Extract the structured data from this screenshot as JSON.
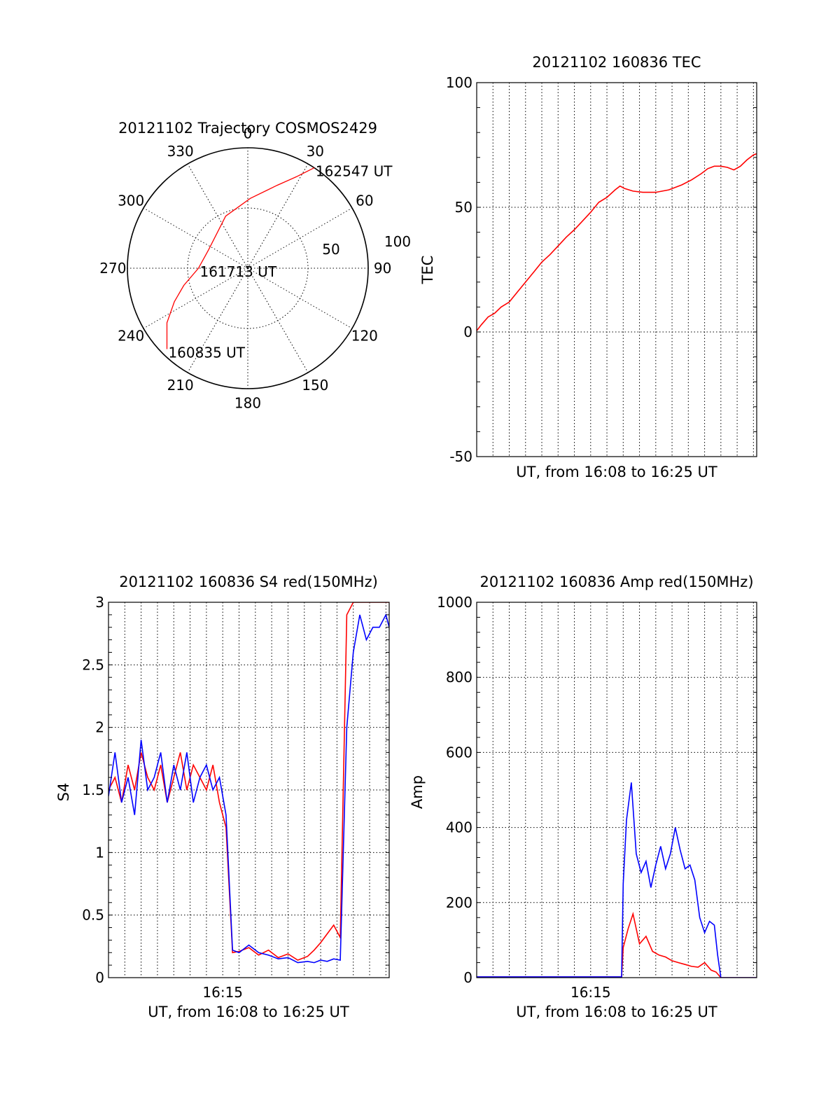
{
  "chart_data": [
    {
      "id": "polar",
      "type": "polar-trajectory",
      "title": "20121102 Trajectory COSMOS2429",
      "angle_labels": [
        "0",
        "30",
        "60",
        "90",
        "120",
        "150",
        "180",
        "210",
        "240",
        "270",
        "300",
        "330"
      ],
      "radius_labels": [
        "50",
        "100"
      ],
      "trajectory": [
        {
          "azimuth": 225.0,
          "zenith": 95,
          "label": "160835 UT"
        },
        {
          "azimuth": 236.0,
          "zenith": 81
        },
        {
          "azimuth": 245.5,
          "zenith": 67
        },
        {
          "azimuth": 255.0,
          "zenith": 55
        },
        {
          "azimuth": 270.0,
          "zenith": 41,
          "label": "161713 UT"
        },
        {
          "azimuth": 295.0,
          "zenith": 36
        },
        {
          "azimuth": 337.0,
          "zenith": 47
        },
        {
          "azimuth": 2.0,
          "zenith": 58
        },
        {
          "azimuth": 19.5,
          "zenith": 73
        },
        {
          "azimuth": 28.0,
          "zenith": 86
        },
        {
          "azimuth": 33.5,
          "zenith": 100,
          "label": "162547 UT"
        }
      ],
      "colors": {
        "trajectory": "#ff0000"
      }
    },
    {
      "id": "tec",
      "type": "line",
      "title": "20121102 160836 TEC",
      "xlabel": "UT, from 16:08 to 16:25 UT",
      "ylabel": "TEC",
      "ylim": [
        -50,
        100
      ],
      "yticks": [
        "100",
        "50",
        "0",
        "-50"
      ],
      "xtick_labels": [],
      "xrange_minutes": [
        0,
        17.2
      ],
      "series": [
        {
          "color": "#ff0000",
          "x": [
            0.0,
            0.3,
            0.7,
            1.1,
            1.5,
            2.0,
            2.5,
            3.0,
            3.5,
            4.0,
            4.5,
            5.0,
            5.5,
            6.0,
            6.5,
            7.0,
            7.5,
            8.0,
            8.5,
            8.8,
            9.1,
            9.6,
            10.2,
            11.0,
            11.8,
            12.6,
            13.2,
            13.8,
            14.2,
            14.6,
            15.0,
            15.4,
            15.8,
            16.2,
            16.6,
            17.0,
            17.2
          ],
          "y": [
            0.5,
            3,
            6,
            7.5,
            10,
            12,
            16,
            20,
            24,
            28,
            31,
            34.5,
            38,
            41,
            44.5,
            48,
            52,
            54,
            57,
            58.5,
            57.5,
            56.5,
            56,
            56,
            57,
            59,
            61,
            63.5,
            65.5,
            66.5,
            66.5,
            66,
            65,
            66.5,
            69,
            71,
            71.5
          ]
        }
      ]
    },
    {
      "id": "s4",
      "type": "line",
      "title": "20121102 160836 S4 red(150MHz)",
      "xlabel": "UT, from 16:08 to 16:25 UT",
      "ylabel": "S4",
      "ylim": [
        0,
        3
      ],
      "yticks": [
        "3",
        "2.5",
        "2",
        "1.5",
        "1",
        "0.5",
        "0"
      ],
      "xtick_labels": [
        {
          "minute": 7,
          "label": "16:15"
        }
      ],
      "xrange_minutes": [
        0,
        17.2
      ],
      "series": [
        {
          "color": "#ff0000",
          "x": [
            0.0,
            0.4,
            0.8,
            1.2,
            1.6,
            2.0,
            2.4,
            2.8,
            3.2,
            3.6,
            4.0,
            4.4,
            4.8,
            5.2,
            5.6,
            6.0,
            6.4,
            6.8,
            7.2,
            7.6,
            8.0,
            8.6,
            9.2,
            9.8,
            10.4,
            11.0,
            11.6,
            12.2,
            12.6,
            13.0,
            13.4,
            13.8,
            14.2,
            14.6,
            15.0,
            15.4,
            15.8,
            16.2,
            16.6,
            17.0,
            17.2
          ],
          "y": [
            1.5,
            1.6,
            1.4,
            1.7,
            1.5,
            1.8,
            1.6,
            1.5,
            1.7,
            1.4,
            1.6,
            1.8,
            1.5,
            1.7,
            1.6,
            1.5,
            1.7,
            1.4,
            1.2,
            0.2,
            0.21,
            0.24,
            0.18,
            0.22,
            0.16,
            0.19,
            0.14,
            0.17,
            0.22,
            0.28,
            0.35,
            0.42,
            0.32,
            2.9,
            3.0,
            3.0,
            3.0,
            3.0,
            3.0,
            3.0,
            3.0
          ]
        },
        {
          "color": "#0000ff",
          "x": [
            0.0,
            0.4,
            0.8,
            1.2,
            1.6,
            2.0,
            2.4,
            2.8,
            3.2,
            3.6,
            4.0,
            4.4,
            4.8,
            5.2,
            5.6,
            6.0,
            6.4,
            6.8,
            7.2,
            7.6,
            8.0,
            8.6,
            9.2,
            9.8,
            10.4,
            11.0,
            11.6,
            12.2,
            12.6,
            13.0,
            13.4,
            13.8,
            14.2,
            14.6,
            15.0,
            15.4,
            15.8,
            16.2,
            16.6,
            17.0,
            17.2
          ],
          "y": [
            1.45,
            1.8,
            1.4,
            1.6,
            1.3,
            1.9,
            1.5,
            1.6,
            1.8,
            1.4,
            1.7,
            1.5,
            1.8,
            1.4,
            1.6,
            1.7,
            1.5,
            1.6,
            1.3,
            0.22,
            0.2,
            0.26,
            0.2,
            0.18,
            0.15,
            0.16,
            0.12,
            0.13,
            0.12,
            0.14,
            0.13,
            0.15,
            0.14,
            2.0,
            2.6,
            2.9,
            2.7,
            2.8,
            2.8,
            2.9,
            2.8
          ]
        }
      ]
    },
    {
      "id": "amp",
      "type": "line",
      "title": "20121102 160836 Amp red(150MHz)",
      "xlabel": "UT, from 16:08 to 16:25 UT",
      "ylabel": "Amp",
      "ylim": [
        0,
        1000
      ],
      "yticks": [
        "1000",
        "800",
        "600",
        "400",
        "200",
        "0"
      ],
      "xtick_labels": [
        {
          "minute": 7,
          "label": "16:15"
        }
      ],
      "xrange_minutes": [
        0,
        17.2
      ],
      "series": [
        {
          "color": "#ff0000",
          "x": [
            0.0,
            8.9,
            9.0,
            9.3,
            9.6,
            10.0,
            10.4,
            10.8,
            11.2,
            11.6,
            12.0,
            12.4,
            12.8,
            13.2,
            13.6,
            14.0,
            14.4,
            14.7,
            15.0,
            17.2
          ],
          "y": [
            2,
            2,
            80,
            130,
            170,
            90,
            110,
            70,
            60,
            55,
            45,
            40,
            35,
            30,
            28,
            40,
            20,
            15,
            0,
            0
          ]
        },
        {
          "color": "#0000ff",
          "x": [
            0.0,
            8.9,
            9.0,
            9.2,
            9.5,
            9.8,
            10.1,
            10.4,
            10.7,
            11.0,
            11.3,
            11.6,
            11.9,
            12.2,
            12.5,
            12.8,
            13.1,
            13.4,
            13.7,
            14.0,
            14.3,
            14.6,
            14.8,
            15.0,
            17.2
          ],
          "y": [
            2,
            2,
            250,
            420,
            520,
            330,
            280,
            310,
            240,
            300,
            350,
            290,
            330,
            400,
            340,
            290,
            300,
            260,
            160,
            120,
            150,
            140,
            60,
            0,
            0
          ]
        }
      ]
    }
  ]
}
